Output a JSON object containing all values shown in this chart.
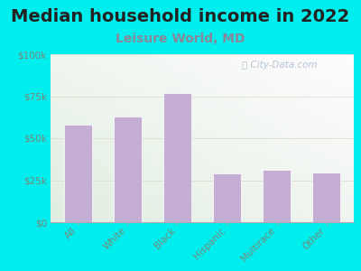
{
  "title": "Median household income in 2022",
  "subtitle": "Leisure World, MD",
  "categories": [
    "All",
    "White",
    "Black",
    "Hispanic",
    "Multirace",
    "Other"
  ],
  "values": [
    58000,
    63000,
    77000,
    29000,
    31000,
    29500
  ],
  "bar_color": "#c4aed4",
  "bar_edge_color": "#ffffff",
  "background_outer": "#00eeee",
  "ytick_labels": [
    "$0",
    "$25k",
    "$50k",
    "$75k",
    "$100k"
  ],
  "ytick_values": [
    0,
    25000,
    50000,
    75000,
    100000
  ],
  "ylim": [
    0,
    100000
  ],
  "title_fontsize": 14,
  "subtitle_fontsize": 10,
  "title_color": "#222222",
  "subtitle_color": "#888899",
  "tick_label_color": "#778877",
  "watermark": "City-Data.com",
  "watermark_color": "#aabbcc"
}
